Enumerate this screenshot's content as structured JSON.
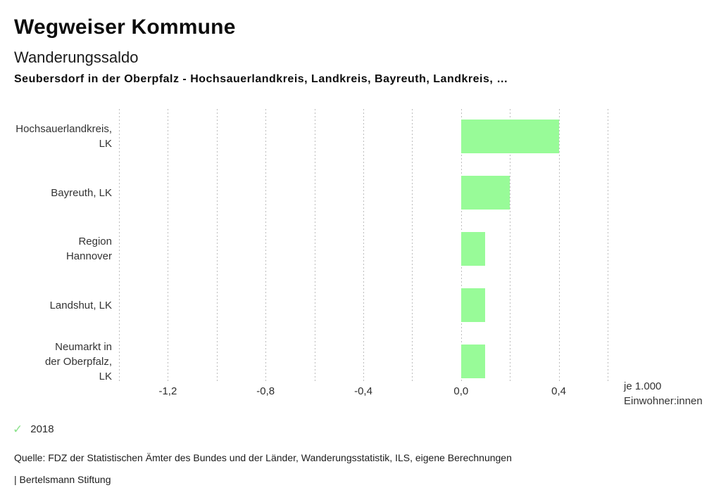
{
  "header": {
    "title": "Wegweiser Kommune"
  },
  "chart_data": {
    "type": "bar",
    "orientation": "horizontal",
    "title": "Wanderungssaldo",
    "subtitle": "Seubersdorf in der Oberpfalz - Hochsauerlandkreis, Landkreis, Bayreuth, Landkreis, …",
    "categories": [
      "Hochsauerlandkreis, LK",
      "Bayreuth, LK",
      "Region Hannover",
      "Landshut, LK",
      "Neumarkt in der Oberpfalz, LK"
    ],
    "category_lines": [
      [
        "Hochsauerlandkreis,",
        "LK"
      ],
      [
        "Bayreuth, LK"
      ],
      [
        "Region",
        "Hannover"
      ],
      [
        "Landshut, LK"
      ],
      [
        "Neumarkt in",
        "der Oberpfalz,",
        "LK"
      ]
    ],
    "series": [
      {
        "name": "2018",
        "values": [
          0.4,
          0.2,
          0.1,
          0.1,
          0.1
        ]
      }
    ],
    "xlim": [
      -1.4,
      0.6
    ],
    "grid_step": 0.2,
    "xticks": [
      {
        "value": -1.2,
        "label": "-1,2"
      },
      {
        "value": -0.8,
        "label": "-0,8"
      },
      {
        "value": -0.4,
        "label": "-0,4"
      },
      {
        "value": 0.0,
        "label": "0,0"
      },
      {
        "value": 0.4,
        "label": "0,4"
      }
    ],
    "xlabel_lines": [
      "je 1.000",
      "Einwohner:innen"
    ],
    "bar_color": "#98FB98",
    "grid_color": "#bdbdbd",
    "grid": "dotted-vertical",
    "legend_position": "bottom-left",
    "legend": {
      "marker": "check-icon",
      "marker_glyph": "✓",
      "marker_color": "#8BE28B",
      "label": "2018"
    }
  },
  "footer": {
    "source": "Quelle: FDZ der Statistischen Ämter des Bundes und der Länder, Wanderungsstatistik, ILS, eigene Berechnungen",
    "attribution": "| Bertelsmann Stiftung"
  }
}
